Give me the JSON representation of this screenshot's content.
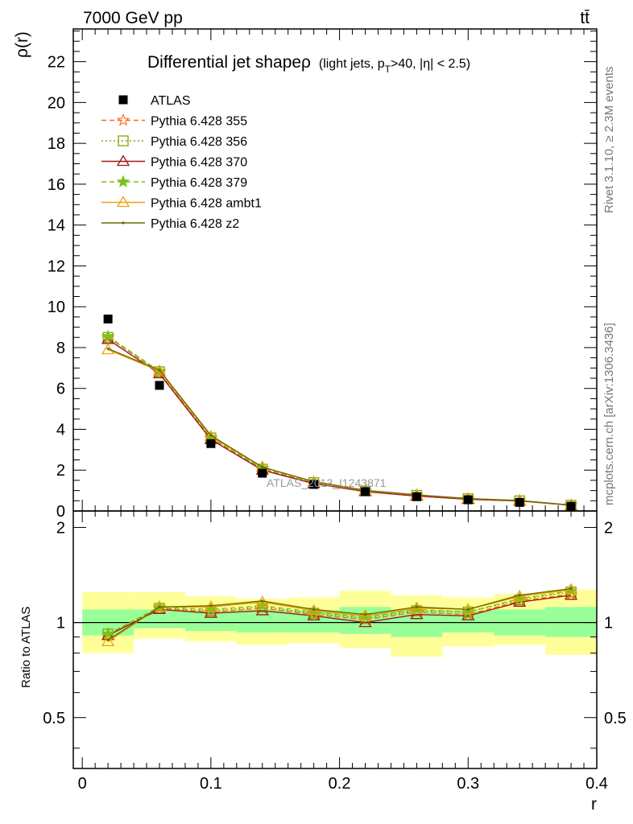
{
  "header": {
    "energy": "7000 GeV pp",
    "process": "tt̄"
  },
  "side_labels": {
    "rivet": "Rivet 3.1.10, ≥ 2.3M events",
    "mcplots": "mcplots.cern.ch [arXiv:1306.3436]"
  },
  "watermark": "ATLAS_2013_I1243871",
  "title": {
    "main": "Differential jet shapeρ",
    "cut_a": "(light jets, p",
    "cut_sub": "T",
    "cut_b": ">40, |η| < 2.5)"
  },
  "axes": {
    "ylabel_top": "ρ(r)",
    "ylabel_bottom": "Ratio to ATLAS",
    "xlabel": "r"
  },
  "chart_data": [
    {
      "type": "scatter",
      "panel": "main",
      "xlim": [
        -0.007,
        0.4
      ],
      "ylim": [
        0,
        23.6
      ],
      "xticks": [
        0,
        0.1,
        0.2,
        0.3,
        0.4
      ],
      "xtick_labels": [
        "0",
        "0.1",
        "0.2",
        "0.3",
        "0.4"
      ],
      "yticks": [
        0,
        2,
        4,
        6,
        8,
        10,
        12,
        14,
        16,
        18,
        20,
        22
      ],
      "ytick_labels": [
        "0",
        "2",
        "4",
        "6",
        "8",
        "10",
        "12",
        "14",
        "16",
        "18",
        "20",
        "22"
      ],
      "x": [
        0.02,
        0.06,
        0.1,
        0.14,
        0.18,
        0.22,
        0.26,
        0.3,
        0.34,
        0.38
      ],
      "x_bins": [
        [
          0.0,
          0.04
        ],
        [
          0.04,
          0.08
        ],
        [
          0.08,
          0.12
        ],
        [
          0.12,
          0.16
        ],
        [
          0.16,
          0.2
        ],
        [
          0.2,
          0.24
        ],
        [
          0.24,
          0.28
        ],
        [
          0.28,
          0.32
        ],
        [
          0.32,
          0.36
        ],
        [
          0.36,
          0.4
        ]
      ],
      "data": {
        "name": "ATLAS",
        "values": [
          9.4,
          6.15,
          3.3,
          1.85,
          1.3,
          0.95,
          0.7,
          0.55,
          0.42,
          0.23
        ]
      },
      "series": [
        {
          "name": "Pythia 6.428 355",
          "color": "#ff6a1a",
          "dash": "6,4",
          "marker": "star-open",
          "values": [
            8.5,
            6.8,
            3.55,
            2.05,
            1.38,
            0.97,
            0.76,
            0.59,
            0.5,
            0.28
          ]
        },
        {
          "name": "Pythia 6.428 356",
          "color": "#8aa000",
          "dash": "2,3",
          "marker": "square-open",
          "values": [
            8.5,
            6.82,
            3.58,
            2.05,
            1.39,
            0.98,
            0.77,
            0.6,
            0.5,
            0.28
          ]
        },
        {
          "name": "Pythia 6.428 370",
          "color": "#a01818",
          "dash": "",
          "marker": "triangle-open",
          "values": [
            8.4,
            6.72,
            3.5,
            2.0,
            1.34,
            0.95,
            0.73,
            0.57,
            0.49,
            0.28
          ]
        },
        {
          "name": "Pythia 6.428 379",
          "color": "#7cc21c",
          "dash": "6,4",
          "marker": "star-filled",
          "values": [
            8.55,
            6.85,
            3.6,
            2.1,
            1.4,
            0.99,
            0.78,
            0.6,
            0.51,
            0.29
          ]
        },
        {
          "name": "Pythia 6.428 ambt1",
          "color": "#f0a010",
          "dash": "",
          "marker": "triangle-open",
          "values": [
            7.9,
            6.85,
            3.65,
            2.15,
            1.42,
            1.0,
            0.78,
            0.61,
            0.51,
            0.29
          ]
        },
        {
          "name": "Pythia 6.428 z2",
          "color": "#6b6b00",
          "dash": "",
          "marker": "dot",
          "values": [
            7.95,
            6.9,
            3.7,
            2.15,
            1.44,
            1.01,
            0.79,
            0.61,
            0.51,
            0.29
          ]
        }
      ]
    },
    {
      "type": "line",
      "panel": "ratio",
      "xlim": [
        -0.007,
        0.4
      ],
      "ylim": [
        0.345,
        2.255
      ],
      "yticks": [
        0.5,
        1,
        2
      ],
      "ytick_labels": [
        "0.5",
        "1",
        "2"
      ],
      "x": [
        0.02,
        0.06,
        0.1,
        0.14,
        0.18,
        0.22,
        0.26,
        0.3,
        0.34,
        0.38
      ],
      "band_inner": [
        [
          0.91,
          1.1
        ],
        [
          0.96,
          1.1
        ],
        [
          0.94,
          1.09
        ],
        [
          0.93,
          1.1
        ],
        [
          0.93,
          1.09
        ],
        [
          0.92,
          1.12
        ],
        [
          0.9,
          1.09
        ],
        [
          0.93,
          1.09
        ],
        [
          0.91,
          1.1
        ],
        [
          0.9,
          1.12
        ]
      ],
      "band_outer": [
        [
          0.8,
          1.25
        ],
        [
          0.89,
          1.25
        ],
        [
          0.87,
          1.21
        ],
        [
          0.85,
          1.19
        ],
        [
          0.86,
          1.2
        ],
        [
          0.83,
          1.26
        ],
        [
          0.78,
          1.22
        ],
        [
          0.84,
          1.2
        ],
        [
          0.85,
          1.23
        ],
        [
          0.79,
          1.27
        ]
      ],
      "series": [
        {
          "name": "Pythia 6.428 355",
          "values": [
            0.92,
            1.11,
            1.08,
            1.11,
            1.06,
            1.02,
            1.08,
            1.06,
            1.17,
            1.23
          ]
        },
        {
          "name": "Pythia 6.428 356",
          "values": [
            0.92,
            1.11,
            1.09,
            1.12,
            1.07,
            1.03,
            1.09,
            1.08,
            1.18,
            1.25
          ]
        },
        {
          "name": "Pythia 6.428 370",
          "values": [
            0.91,
            1.1,
            1.07,
            1.09,
            1.05,
            1.0,
            1.06,
            1.05,
            1.16,
            1.22
          ]
        },
        {
          "name": "Pythia 6.428 379",
          "values": [
            0.92,
            1.12,
            1.1,
            1.13,
            1.08,
            1.04,
            1.1,
            1.08,
            1.19,
            1.26
          ]
        },
        {
          "name": "Pythia 6.428 ambt1",
          "values": [
            0.87,
            1.12,
            1.12,
            1.16,
            1.09,
            1.05,
            1.11,
            1.1,
            1.21,
            1.27
          ]
        },
        {
          "name": "Pythia 6.428 z2",
          "values": [
            0.88,
            1.12,
            1.13,
            1.17,
            1.1,
            1.06,
            1.12,
            1.1,
            1.22,
            1.28
          ]
        }
      ]
    }
  ]
}
